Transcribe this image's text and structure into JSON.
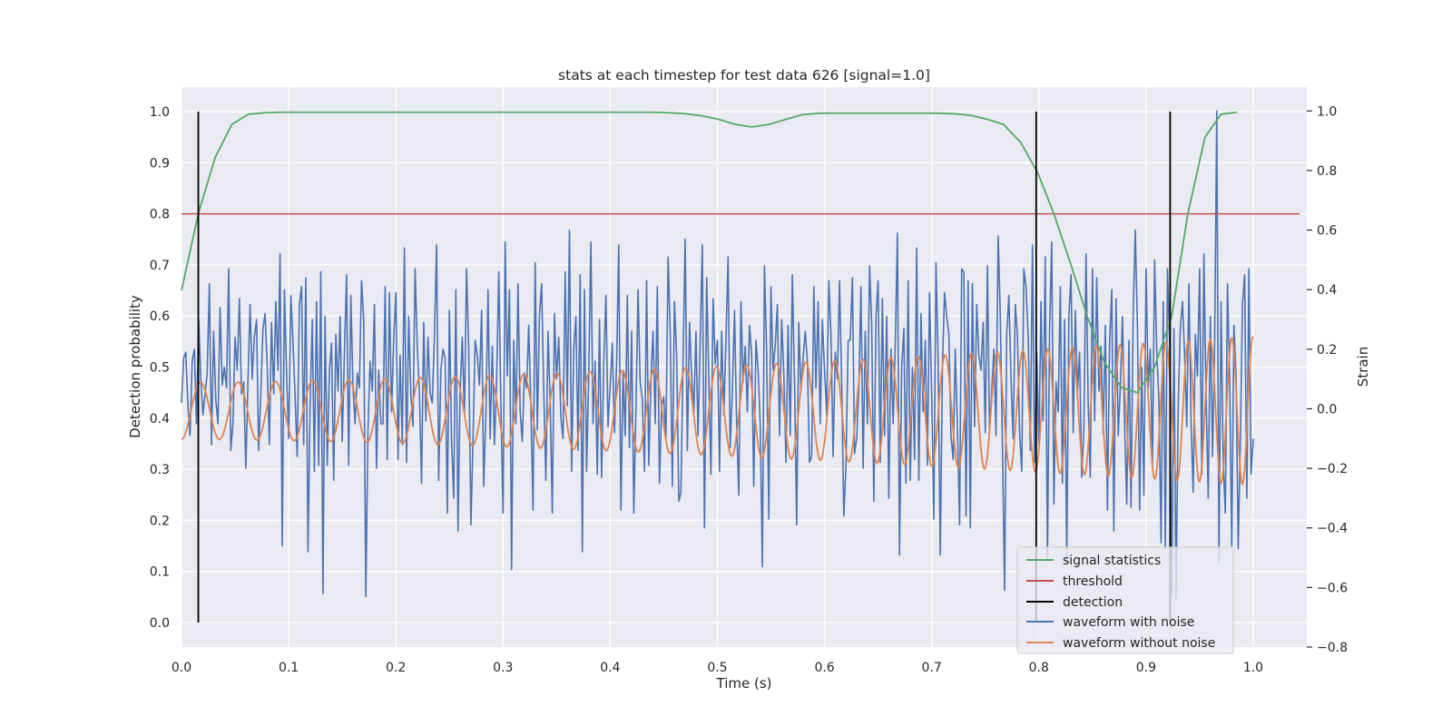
{
  "chart_data": {
    "type": "line",
    "title": "stats at each timestep for test data 626 [signal=1.0]",
    "xlabel": "Time (s)",
    "ylabel": "Detection probability",
    "y2label": "Strain",
    "xlim": [
      0.0,
      1.05
    ],
    "ylim": [
      -0.048,
      1.048
    ],
    "y2lim": [
      -0.8,
      1.08
    ],
    "xticks": [
      0.0,
      0.1,
      0.2,
      0.3,
      0.4,
      0.5,
      0.6,
      0.7,
      0.8,
      0.9,
      1.0
    ],
    "xtick_labels": [
      "0.0",
      "0.1",
      "0.2",
      "0.3",
      "0.4",
      "0.5",
      "0.6",
      "0.7",
      "0.8",
      "0.9",
      "1.0"
    ],
    "yticks": [
      0.0,
      0.1,
      0.2,
      0.3,
      0.4,
      0.5,
      0.6,
      0.7,
      0.8,
      0.9,
      1.0
    ],
    "ytick_labels": [
      "0.0",
      "0.1",
      "0.2",
      "0.3",
      "0.4",
      "0.5",
      "0.6",
      "0.7",
      "0.8",
      "0.9",
      "1.0"
    ],
    "y2ticks": [
      -0.8,
      -0.6,
      -0.4,
      -0.2,
      0.0,
      0.2,
      0.4,
      0.6,
      0.8,
      1.0
    ],
    "y2tick_labels": [
      "−0.8",
      "−0.6",
      "−0.4",
      "−0.2",
      "0.0",
      "0.2",
      "0.4",
      "0.6",
      "0.8",
      "1.0"
    ],
    "grid": true,
    "legend_position": "bottom-right",
    "colors": {
      "plot_background": "#eaeaf2",
      "grid": "#ffffff",
      "signal_statistics": "#55a868",
      "threshold": "#c44e52",
      "detection": "#000000",
      "waveform_with_noise": "#4c72b0",
      "waveform_without_noise": "#dd8452"
    },
    "series": [
      {
        "name": "signal statistics",
        "axis": "left",
        "x": [
          0.0,
          0.0157,
          0.0313,
          0.047,
          0.0626,
          0.0783,
          0.094,
          0.11,
          0.125,
          0.141,
          0.157,
          0.172,
          0.188,
          0.204,
          0.219,
          0.235,
          0.25,
          0.266,
          0.282,
          0.297,
          0.313,
          0.329,
          0.344,
          0.36,
          0.376,
          0.391,
          0.407,
          0.423,
          0.438,
          0.454,
          0.47,
          0.485,
          0.501,
          0.517,
          0.532,
          0.548,
          0.564,
          0.579,
          0.595,
          0.611,
          0.626,
          0.642,
          0.658,
          0.673,
          0.689,
          0.705,
          0.72,
          0.736,
          0.752,
          0.767,
          0.783,
          0.799,
          0.814,
          0.83,
          0.845,
          0.861,
          0.877,
          0.892,
          0.908,
          0.924,
          0.939,
          0.955,
          0.97,
          0.985
        ],
        "values": [
          0.65,
          0.8,
          0.91,
          0.975,
          0.995,
          0.998,
          0.999,
          0.999,
          0.999,
          0.999,
          0.999,
          0.999,
          0.999,
          0.999,
          0.999,
          0.999,
          0.999,
          0.999,
          0.999,
          0.999,
          0.999,
          0.999,
          0.999,
          0.999,
          0.999,
          0.999,
          0.999,
          0.999,
          0.999,
          0.998,
          0.996,
          0.992,
          0.985,
          0.975,
          0.97,
          0.975,
          0.985,
          0.994,
          0.997,
          0.997,
          0.997,
          0.997,
          0.997,
          0.997,
          0.997,
          0.997,
          0.996,
          0.993,
          0.985,
          0.975,
          0.94,
          0.88,
          0.8,
          0.7,
          0.6,
          0.51,
          0.46,
          0.45,
          0.5,
          0.6,
          0.8,
          0.95,
          0.995,
          0.999
        ]
      },
      {
        "name": "threshold",
        "axis": "left",
        "x": [
          0.0,
          1.05
        ],
        "values": [
          0.8,
          0.8
        ]
      },
      {
        "name": "detection",
        "axis": "left",
        "segments": [
          {
            "x": 0.0157,
            "y": [
              0.0,
              1.0
            ]
          },
          {
            "x": 0.7975,
            "y": [
              0.0,
              1.0
            ]
          },
          {
            "x": 0.9225,
            "y": [
              0.0,
              1.0
            ]
          }
        ]
      },
      {
        "name": "waveform with noise",
        "axis": "right",
        "x_start": 0.0,
        "x_end": 1.0,
        "values": [
          0.02,
          0.17,
          0.19,
          0.01,
          -0.09,
          0.16,
          0.2,
          -0.05,
          0.3,
          0.1,
          -0.02,
          0.05,
          0.12,
          0.42,
          -0.12,
          0.26,
          0.03,
          -0.05,
          0.34,
          0.08,
          0.14,
          0.07,
          0.47,
          -0.14,
          -0.05,
          0.24,
          0.13,
          0.37,
          0.05,
          0.09,
          -0.2,
          0.09,
          0.35,
          0.1,
          0.24,
          0.3,
          -0.14,
          0.05,
          0.27,
          0.32,
          0.14,
          -0.12,
          0.29,
          0.05,
          0.36,
          0.13,
          0.52,
          -0.46,
          0.4,
          0.13,
          -0.1,
          0.38,
          0.23,
          0.04,
          -0.16,
          0.35,
          0.41,
          -0.12,
          0.44,
          -0.48,
          0.01,
          0.3,
          -0.21,
          0.36,
          -0.19,
          0.46,
          -0.62,
          0.31,
          -0.19,
          0.13,
          0.22,
          -0.24,
          0.25,
          0.06,
          0.31,
          -0.11,
          0.18,
          0.45,
          -0.19,
          0.38,
          0.07,
          -0.05,
          0.12,
          0.07,
          0.43,
          0.3,
          -0.63,
          -0.07,
          0.16,
          0.06,
          0.35,
          -0.2,
          0.13,
          -0.05,
          -0.05,
          0.41,
          -0.17,
          0.39,
          -0.01,
          0.23,
          0.39,
          -0.17,
          0.18,
          -0.12,
          0.54,
          -0.18,
          0.31,
          0.05,
          -0.06,
          0.47,
          0.21,
          0.05,
          -0.25,
          0.29,
          -0.04,
          0.24,
          0.05,
          0.02,
          0.24,
          0.55,
          -0.24,
          0.13,
          0.2,
          0.17,
          -0.35,
          0.33,
          -0.11,
          -0.3,
          0.4,
          -0.41,
          0.06,
          0.24,
          -0.02,
          0.47,
          0.2,
          -0.39,
          -0.11,
          0.23,
          0.18,
          0.08,
          0.33,
          -0.26,
          -0.02,
          0.4,
          -0.1,
          0.21,
          -0.12,
          0.09,
          0.46,
          0.02,
          -0.35,
          0.56,
          0.11,
          0.4,
          -0.54,
          0.23,
          -0.05,
          0.42,
          -0.01,
          -0.11,
          0.12,
          0.07,
          0.28,
          0.01,
          -0.34,
          0.49,
          -0.07,
          0.31,
          0.42,
          0.06,
          -0.24,
          0.26,
          0.03,
          -0.35,
          0.32,
          0.1,
          0.24,
          -0.03,
          -0.1,
          0.46,
          0.01,
          0.6,
          -0.21,
          0.2,
          0.31,
          -0.14,
          0.45,
          -0.48,
          0.4,
          -0.21,
          0.12,
          0.56,
          -0.05,
          0.16,
          -0.22,
          0.3,
          -0.23,
          0.15,
          0.38,
          -0.06,
          0.08,
          0.22,
          -0.08,
          0.16,
          0.55,
          -0.34,
          0.12,
          -0.09,
          0.38,
          -0.13,
          0.26,
          -0.35,
          -0.01,
          0.4,
          0.09,
          0.03,
          -0.21,
          0.43,
          -0.19,
          0.1,
          0.26,
          -0.05,
          0.41,
          -0.25,
          0.01,
          0.04,
          -0.1,
          0.51,
          0.26,
          -0.26,
          0.36,
          0.18,
          -0.31,
          -0.28,
          0.16,
          0.57,
          -0.14,
          0.29,
          0.12,
          -0.02,
          0.26,
          -0.09,
          0.23,
          0.55,
          -0.4,
          0.44,
          0.11,
          -0.22,
          0.37,
          0.15,
          0.23,
          -0.21,
          0.26,
          -0.02,
          0.23,
          0.51,
          -0.13,
          0.06,
          0.33,
          -0.05,
          -0.29,
          0.36,
          0.09,
          0.21,
          -0.01,
          0.28,
          0.18,
          -0.26,
          0.23,
          0.13,
          -0.05,
          -0.53,
          0.48,
          0.19,
          -0.37,
          0.41,
          0.13,
          0.21,
          0.35,
          -0.09,
          0.3,
          0.12,
          -0.18,
          0.28,
          -0.09,
          0.45,
          0.09,
          -0.39,
          0.29,
          0.06,
          0.17,
          0.26,
          0.16,
          -0.18,
          -0.16,
          0.41,
          0.07,
          0.36,
          -0.05,
          0.3,
          0.13,
          -0.02,
          0.43,
          0.25,
          -0.16,
          0.19,
          0.1,
          0.43,
          0.08,
          -0.36,
          -0.19,
          0.23,
          0.23,
          0.44,
          -0.15,
          -0.1,
          0.07,
          0.41,
          -0.2,
          0.26,
          -0.05,
          0.48,
          0.29,
          -0.31,
          0.31,
          0.43,
          -0.18,
          0.37,
          -0.09,
          0.31,
          -0.3,
          0.2,
          -0.05,
          0.21,
          0.59,
          -0.49,
          0.14,
          0.27,
          -0.25,
          0.43,
          -0.24,
          0.14,
          -0.17,
          0.54,
          -0.24,
          0.32,
          -0.01,
          0.23,
          -0.19,
          0.39,
          0.04,
          -0.37,
          0.49,
          0.16,
          -0.49,
          0.14,
          0.39,
          0.31,
          0.25,
          -0.09,
          -0.17,
          0.2,
          -0.06,
          -0.39,
          0.47,
          0.46,
          -0.36,
          0.43,
          -0.4,
          0.42,
          -0.06,
          0.35,
          0.18,
          0.13,
          0.29,
          -0.08,
          0.48,
          -0.08,
          0.06,
          0.2,
          -0.09,
          0.58,
          0.32,
          -0.12,
          -0.61,
          0.25,
          0.38,
          0.1,
          -0.1,
          0.35,
          0.25,
          -0.08,
          -0.21,
          0.47,
          0.41,
          0.24,
          -0.14,
          0.55,
          -0.18,
          0.19,
          -0.12,
          0.36,
          -0.04,
          0.51,
          -0.51,
          0.27,
          0.56,
          -0.32,
          0.09,
          -0.01,
          0.41,
          -0.25,
          0.3,
          -0.52,
          0.31,
          0.45,
          -0.08,
          0.33,
          0.06,
          0.19,
          -0.23,
          -0.06,
          0.52,
          0.02,
          -0.23,
          0.47,
          -0.04,
          0.44,
          0.06,
          0.21,
          -0.08,
          0.28,
          -0.34,
          0.22,
          0.4,
          -0.41,
          0.37,
          -0.09,
          0.07,
          0.31,
          -0.05,
          -0.32,
          0.23,
          -0.33,
          0.32,
          0.6,
          0.27,
          -0.34,
          0.14,
          -0.29,
          0.47,
          0.07,
          0.2,
          -0.2,
          0.5,
          0.19,
          0.03,
          -0.45,
          0.36,
          -0.47,
          0.47,
          0.22,
          -0.63,
          0.27,
          -0.64,
          0.01,
          0.27,
          0.36,
          0.18,
          -0.06,
          0.42,
          -0.05,
          -0.28,
          0.25,
          0.11,
          0.47,
          -0.22,
          0.52,
          0.04,
          -0.3,
          0.31,
          -0.16,
          0.21,
          1.0,
          -0.52,
          0.36,
          -0.18,
          -0.35,
          0.42,
          0.1,
          -0.46,
          0.28,
          0.11,
          -0.47,
          -0.1,
          0.35,
          0.45,
          -0.3,
          0.47,
          -0.22,
          -0.1
        ]
      },
      {
        "name": "waveform without noise",
        "axis": "right",
        "x_start": 0.0,
        "x_end": 1.0,
        "chirp": {
          "amp_start": 0.095,
          "amp_end": 0.25,
          "period_start": 0.0355,
          "period_end": 0.0195,
          "offset": -0.007,
          "phase_at_0": -1.57
        }
      }
    ]
  },
  "legend": {
    "items": [
      {
        "label": "signal statistics",
        "color": "#55a868"
      },
      {
        "label": "threshold",
        "color": "#c44e52"
      },
      {
        "label": "detection",
        "color": "#000000"
      },
      {
        "label": "waveform with noise",
        "color": "#4c72b0"
      },
      {
        "label": "waveform without noise",
        "color": "#dd8452"
      }
    ]
  }
}
